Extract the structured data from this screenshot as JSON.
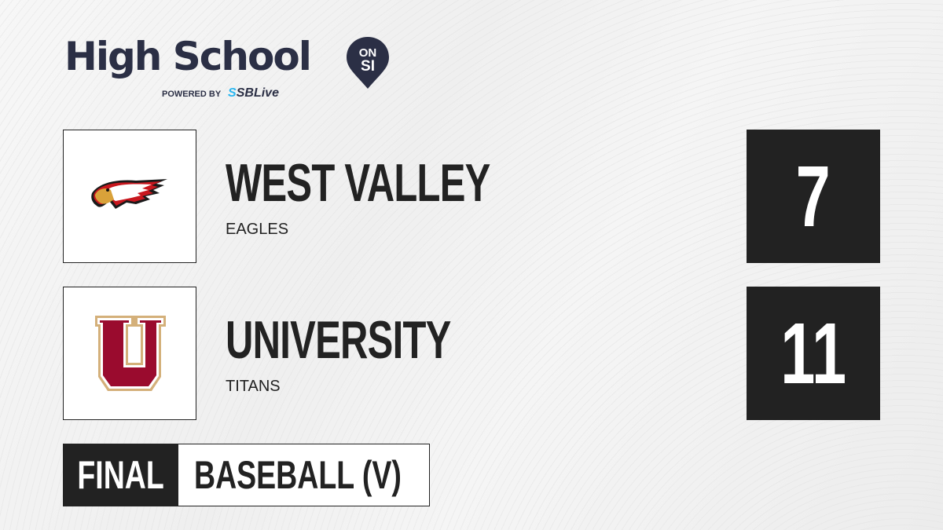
{
  "brand": {
    "title": "High School",
    "badge_top": "ON",
    "badge_bottom": "SI",
    "powered_by": "POWERED BY",
    "partner_prefix": "S",
    "partner": "SBLive"
  },
  "teams": [
    {
      "name": "WEST VALLEY",
      "mascot": "EAGLES",
      "score": "7",
      "logo_icon": "eagle-logo"
    },
    {
      "name": "UNIVERSITY",
      "mascot": "TITANS",
      "score": "11",
      "logo_icon": "letter-u-logo"
    }
  ],
  "game": {
    "status": "FINAL",
    "sport": "BASEBALL (V)"
  },
  "colors": {
    "dark": "#222222",
    "brand_navy": "#2b2f45",
    "sblive_blue": "#29b6f0",
    "titans_maroon": "#9a0b2e",
    "titans_gold": "#d4b07a",
    "eagles_red": "#c8171e",
    "eagles_gold": "#d9a23a"
  }
}
